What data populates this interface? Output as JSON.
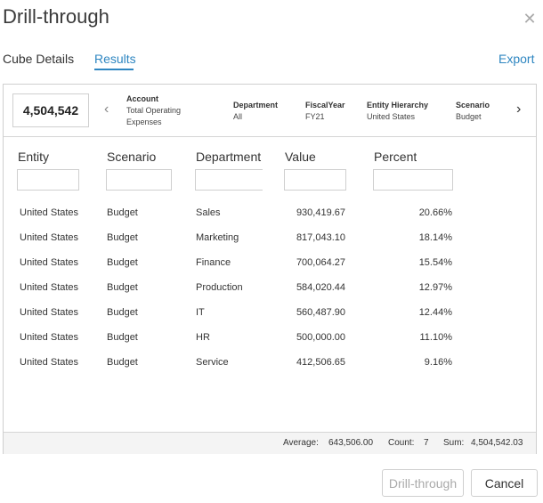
{
  "dialog": {
    "title": "Drill-through"
  },
  "tabs": [
    {
      "label": "Cube Details"
    },
    {
      "label": "Results"
    }
  ],
  "export_label": "Export",
  "pov": {
    "total": "4,504,542",
    "items": [
      {
        "label": "Account",
        "value": "Total Operating Expenses"
      },
      {
        "label": "Department",
        "value": "All"
      },
      {
        "label": "FiscalYear",
        "value": "FY21"
      },
      {
        "label": "Entity Hierarchy",
        "value": "United States"
      },
      {
        "label": "Scenario",
        "value": "Budget"
      }
    ]
  },
  "columns": [
    "Entity",
    "Scenario",
    "Department",
    "Value",
    "Percent"
  ],
  "rows": [
    {
      "entity": "United States",
      "scenario": "Budget",
      "department": "Sales",
      "value": "930,419.67",
      "percent": "20.66%"
    },
    {
      "entity": "United States",
      "scenario": "Budget",
      "department": "Marketing",
      "value": "817,043.10",
      "percent": "18.14%"
    },
    {
      "entity": "United States",
      "scenario": "Budget",
      "department": "Finance",
      "value": "700,064.27",
      "percent": "15.54%"
    },
    {
      "entity": "United States",
      "scenario": "Budget",
      "department": "Production",
      "value": "584,020.44",
      "percent": "12.97%"
    },
    {
      "entity": "United States",
      "scenario": "Budget",
      "department": "IT",
      "value": "560,487.90",
      "percent": "12.44%"
    },
    {
      "entity": "United States",
      "scenario": "Budget",
      "department": "HR",
      "value": "500,000.00",
      "percent": "11.10%"
    },
    {
      "entity": "United States",
      "scenario": "Budget",
      "department": "Service",
      "value": "412,506.65",
      "percent": "9.16%"
    }
  ],
  "summary": {
    "average_label": "Average:",
    "average": "643,506.00",
    "count_label": "Count:",
    "count": "7",
    "sum_label": "Sum:",
    "sum": "4,504,542.03"
  },
  "buttons": {
    "drill": "Drill-through",
    "cancel": "Cancel"
  }
}
